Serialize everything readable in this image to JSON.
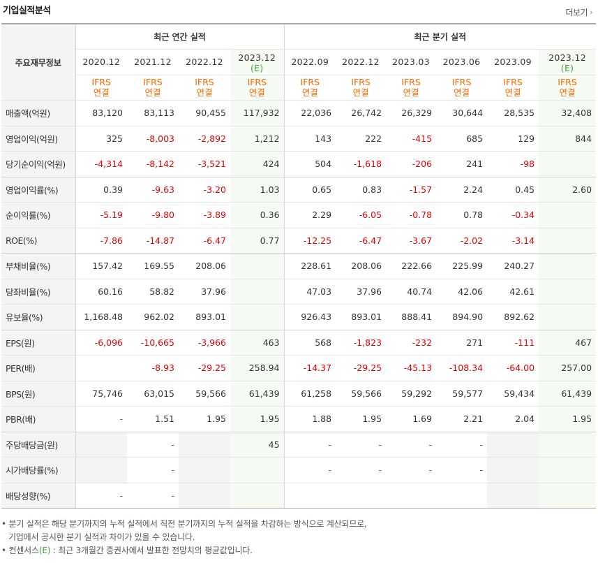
{
  "title": "기업실적분석",
  "more_label": "더보기",
  "header": {
    "row_label": "주요재무정보",
    "annual_group": "최근 연간 실적",
    "quarter_group": "최근 분기 실적",
    "annual_dates": [
      {
        "date": "2020.12",
        "est": ""
      },
      {
        "date": "2021.12",
        "est": ""
      },
      {
        "date": "2022.12",
        "est": ""
      },
      {
        "date": "2023.12",
        "est": "(E)"
      }
    ],
    "quarter_dates": [
      {
        "date": "2022.09",
        "est": ""
      },
      {
        "date": "2022.12",
        "est": ""
      },
      {
        "date": "2023.03",
        "est": ""
      },
      {
        "date": "2023.06",
        "est": ""
      },
      {
        "date": "2023.09",
        "est": ""
      },
      {
        "date": "2023.12",
        "est": "(E)"
      }
    ],
    "ifrs_line1": "IFRS",
    "ifrs_line2": "연결"
  },
  "rows": [
    {
      "label": "매출액(억원)",
      "values": [
        "83,120",
        "83,113",
        "90,455",
        "117,932",
        "22,036",
        "26,742",
        "26,329",
        "30,644",
        "28,535",
        "32,408"
      ]
    },
    {
      "label": "영업이익(억원)",
      "values": [
        "325",
        "-8,003",
        "-2,892",
        "1,212",
        "143",
        "222",
        "-415",
        "685",
        "129",
        "844"
      ]
    },
    {
      "label": "당기순이익(억원)",
      "values": [
        "-4,314",
        "-8,142",
        "-3,521",
        "424",
        "504",
        "-1,618",
        "-206",
        "241",
        "-98",
        ""
      ],
      "groupEnd": true
    },
    {
      "label": "영업이익률(%)",
      "values": [
        "0.39",
        "-9.63",
        "-3.20",
        "1.03",
        "0.65",
        "0.83",
        "-1.57",
        "2.24",
        "0.45",
        "2.60"
      ]
    },
    {
      "label": "순이익률(%)",
      "values": [
        "-5.19",
        "-9.80",
        "-3.89",
        "0.36",
        "2.29",
        "-6.05",
        "-0.78",
        "0.78",
        "-0.34",
        ""
      ]
    },
    {
      "label": "ROE(%)",
      "values": [
        "-7.86",
        "-14.87",
        "-6.47",
        "0.77",
        "-12.25",
        "-6.47",
        "-3.67",
        "-2.02",
        "-3.14",
        ""
      ],
      "groupEnd": true
    },
    {
      "label": "부채비율(%)",
      "values": [
        "157.42",
        "169.55",
        "208.06",
        "",
        "228.61",
        "208.06",
        "222.66",
        "225.99",
        "240.27",
        ""
      ]
    },
    {
      "label": "당좌비율(%)",
      "values": [
        "60.16",
        "58.82",
        "37.96",
        "",
        "47.03",
        "37.96",
        "40.74",
        "42.06",
        "42.61",
        ""
      ]
    },
    {
      "label": "유보율(%)",
      "values": [
        "1,168.48",
        "962.02",
        "893.01",
        "",
        "926.43",
        "893.01",
        "888.41",
        "894.90",
        "892.62",
        ""
      ],
      "groupEnd": true
    },
    {
      "label": "EPS(원)",
      "values": [
        "-6,096",
        "-10,665",
        "-3,966",
        "463",
        "568",
        "-1,823",
        "-232",
        "271",
        "-111",
        "467"
      ]
    },
    {
      "label": "PER(배)",
      "values": [
        "",
        "-8.93",
        "-29.25",
        "258.94",
        "-14.37",
        "-29.25",
        "-45.13",
        "-108.34",
        "-64.00",
        "257.00"
      ]
    },
    {
      "label": "BPS(원)",
      "values": [
        "75,746",
        "63,015",
        "59,566",
        "61,439",
        "61,258",
        "59,566",
        "59,292",
        "59,577",
        "59,434",
        "61,439"
      ]
    },
    {
      "label": "PBR(배)",
      "values": [
        "-",
        "1.51",
        "1.95",
        "1.95",
        "1.88",
        "1.95",
        "1.69",
        "2.21",
        "2.04",
        "1.95"
      ],
      "groupEnd": true
    },
    {
      "label": "주당배당금(원)",
      "values": [
        "",
        "-",
        "",
        "45",
        "-",
        "-",
        "-",
        "-",
        "",
        ""
      ],
      "gray": [
        0,
        2,
        8
      ]
    },
    {
      "label": "시가배당률(%)",
      "values": [
        "",
        "-",
        "",
        "",
        "-",
        "-",
        "-",
        "-",
        "",
        ""
      ],
      "gray": [
        0,
        2,
        8
      ]
    },
    {
      "label": "배당성향(%)",
      "values": [
        "-",
        "-",
        "",
        "",
        "",
        "",
        "",
        "",
        "",
        ""
      ],
      "gray": [
        2,
        8
      ]
    }
  ],
  "notes": {
    "line1": "분기 실적은 해당 분기까지의 누적 실적에서 직전 분기까지의 누적 실적을 차감하는 방식으로 계산되므로,",
    "line2": "기업에서 공시한 분기 실적과 차이가 있을 수 있습니다.",
    "line3_prefix": "컨센서스",
    "line3_e": "(E)",
    "line3_suffix": " : 최근 3개월간 증권사에서 발표한 전망치의 평균값입니다."
  }
}
